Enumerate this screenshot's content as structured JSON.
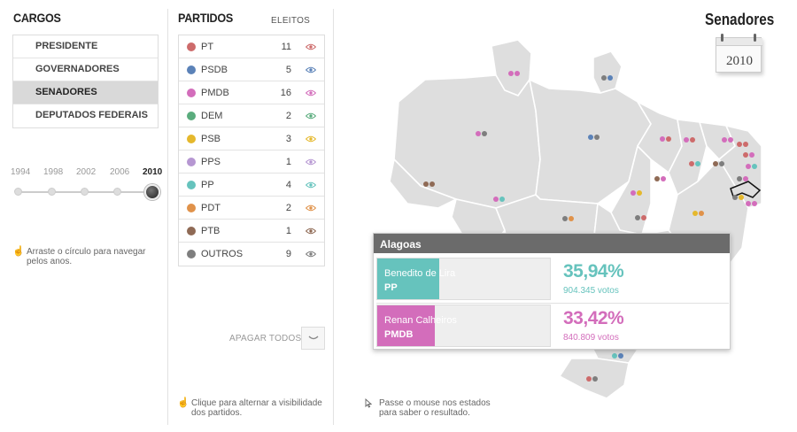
{
  "colors": {
    "PT": "#cd6b6b",
    "PSDB": "#5b82b8",
    "PMDB": "#d36dbb",
    "DEM": "#5aac7d",
    "PSB": "#e5b82c",
    "PPS": "#b697d2",
    "PP": "#66c3bd",
    "PDT": "#e0924a",
    "PTB": "#8f6a55",
    "OUTROS": "#7e7e7e",
    "map_land": "#dedede",
    "map_border": "#ffffff"
  },
  "cargos": {
    "title": "CARGOS",
    "items": [
      {
        "label": "PRESIDENTE",
        "active": false
      },
      {
        "label": "GOVERNADORES",
        "active": false
      },
      {
        "label": "SENADORES",
        "active": true
      },
      {
        "label": "DEPUTADOS FEDERAIS",
        "active": false
      }
    ],
    "years": [
      "1994",
      "1998",
      "2002",
      "2006",
      "2010"
    ],
    "selected_year": "2010",
    "hint": "Arraste o círculo para navegar pelos anos.",
    "hint_icon": "hand-pointer-icon"
  },
  "partidos": {
    "title": "PARTIDOS",
    "eleitos_label": "ELEITOS",
    "rows": [
      {
        "name": "PT",
        "count": "11"
      },
      {
        "name": "PSDB",
        "count": "5"
      },
      {
        "name": "PMDB",
        "count": "16"
      },
      {
        "name": "DEM",
        "count": "2"
      },
      {
        "name": "PSB",
        "count": "3"
      },
      {
        "name": "PPS",
        "count": "1"
      },
      {
        "name": "PP",
        "count": "4"
      },
      {
        "name": "PDT",
        "count": "2"
      },
      {
        "name": "PTB",
        "count": "1"
      },
      {
        "name": "OUTROS",
        "count": "9"
      }
    ],
    "row_icon": "eye-icon",
    "apagar_label": "APAGAR TODOS",
    "hint": "Clique para alternar a visibilidade dos partidos.",
    "hint_icon": "hand-pointer-icon"
  },
  "map": {
    "hint": "Passe o mouse nos estados para saber o resultado.",
    "hint_icon": "cursor-arrow-icon"
  },
  "header": {
    "title": "Senadores",
    "calendar_year": "2010",
    "calendar_icon": "calendar-icon"
  },
  "popup": {
    "state": "Alagoas",
    "candidates": [
      {
        "name": "Benedito de Lira",
        "party": "PP",
        "percent": "35,94%",
        "votes": "904.345 votos",
        "share": 0.3594,
        "color": "#66c3bd"
      },
      {
        "name": "Renan Calheiros",
        "party": "PMDB",
        "percent": "33,42%",
        "votes": "840.809 votos",
        "share": 0.3342,
        "color": "#d36dbb"
      }
    ]
  }
}
